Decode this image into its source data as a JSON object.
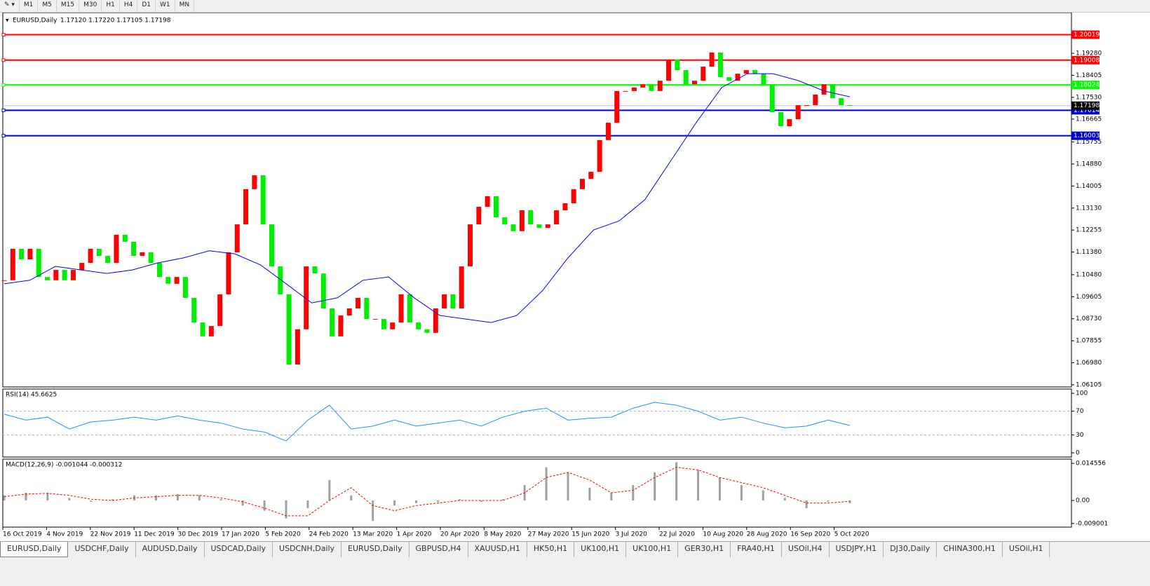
{
  "toolbar": {
    "timeframes": [
      "M1",
      "M5",
      "M15",
      "M30",
      "H1",
      "H4",
      "D1",
      "W1",
      "MN"
    ]
  },
  "main": {
    "title": "EURUSD,Daily",
    "ohlc": "1.17120 1.17220 1.17105 1.17198",
    "up_color": "#ff0000",
    "down_color": "#00ee00",
    "ylim": [
      1.0602,
      1.20896
    ],
    "yticks": [
      {
        "value": 1.1928,
        "label": "1.19280"
      },
      {
        "value": 1.18405,
        "label": "1.18405"
      },
      {
        "value": 1.1753,
        "label": "1.17530"
      },
      {
        "value": 1.16665,
        "label": "1.16665"
      },
      {
        "value": 1.15755,
        "label": "1.15755"
      },
      {
        "value": 1.1488,
        "label": "1.14880"
      },
      {
        "value": 1.14005,
        "label": "1.14005"
      },
      {
        "value": 1.1313,
        "label": "1.13130"
      },
      {
        "value": 1.12255,
        "label": "1.12255"
      },
      {
        "value": 1.1138,
        "label": "1.11380"
      },
      {
        "value": 1.1048,
        "label": "1.10480"
      },
      {
        "value": 1.09605,
        "label": "1.09605"
      },
      {
        "value": 1.0873,
        "label": "1.08730"
      },
      {
        "value": 1.07855,
        "label": "1.07855"
      },
      {
        "value": 1.0698,
        "label": "1.06980"
      },
      {
        "value": 1.06105,
        "label": "1.06105"
      }
    ],
    "hlines": [
      {
        "value": 1.20019,
        "color": "#ff0000"
      },
      {
        "value": 1.19008,
        "color": "#ff0000"
      },
      {
        "value": 1.18024,
        "color": "#00ff00"
      },
      {
        "value": 1.17014,
        "color": "#0000cc"
      },
      {
        "value": 1.16003,
        "color": "#0000cc"
      }
    ],
    "current": 1.17198,
    "closes": [
      1.1026,
      1.1151,
      1.1109,
      1.1151,
      1.1039,
      1.1026,
      1.1067,
      1.1026,
      1.1067,
      1.1095,
      1.1151,
      1.1123,
      1.1095,
      1.1207,
      1.1179,
      1.1123,
      1.1137,
      1.1095,
      1.1039,
      1.1012,
      1.1039,
      1.0956,
      1.0858,
      1.0803,
      1.0844,
      1.097,
      1.1137,
      1.1248,
      1.1388,
      1.1443,
      1.1248,
      1.1081,
      1.097,
      1.0691,
      1.0831,
      1.1081,
      1.1053,
      1.0914,
      1.0803,
      1.0886,
      1.0914,
      1.0956,
      1.0872,
      1.0872,
      1.0831,
      1.0858,
      1.097,
      1.0858,
      1.0831,
      1.0817,
      1.0914,
      1.097,
      1.0914,
      1.1081,
      1.1248,
      1.1318,
      1.136,
      1.1276,
      1.1248,
      1.1221,
      1.1304,
      1.1248,
      1.1234,
      1.1248,
      1.1304,
      1.1332,
      1.1388,
      1.1429,
      1.1457,
      1.1583,
      1.1652,
      1.1778,
      1.1778,
      1.1792,
      1.1805,
      1.1778,
      1.1819,
      1.1903,
      1.1861,
      1.1805,
      1.1819,
      1.1875,
      1.1931,
      1.1833,
      1.1819,
      1.1847,
      1.1861,
      1.1847,
      1.1805,
      1.1694,
      1.1638,
      1.1666,
      1.1722,
      1.1722,
      1.1764,
      1.1805,
      1.175,
      1.1722,
      1.172
    ],
    "ma": {
      "color": "#0000ff",
      "values": [
        1.1012,
        1.1026,
        1.1081,
        1.1067,
        1.1053,
        1.1067,
        1.1095,
        1.1115,
        1.1143,
        1.1131,
        1.1087,
        1.1012,
        1.0936,
        1.0956,
        1.1026,
        1.1039,
        1.0956,
        1.0886,
        1.0872,
        1.0858,
        1.0886,
        1.0984,
        1.1115,
        1.1226,
        1.1262,
        1.1346,
        1.1499,
        1.1652,
        1.1792,
        1.1847,
        1.1847,
        1.1819,
        1.1778,
        1.1755
      ]
    }
  },
  "rsi": {
    "label": "RSI(14) 45.6625",
    "color": "#1e90ff",
    "ylim": [
      -7,
      106
    ],
    "yticks": [
      0,
      30,
      70,
      100
    ],
    "levels": [
      70,
      30
    ],
    "values": [
      65,
      55,
      60,
      40,
      52,
      55,
      60,
      55,
      62,
      55,
      50,
      40,
      35,
      20,
      55,
      80,
      40,
      45,
      55,
      45,
      50,
      55,
      45,
      60,
      70,
      75,
      55,
      58,
      60,
      75,
      85,
      80,
      70,
      55,
      60,
      50,
      42,
      45,
      55,
      46
    ]
  },
  "macd": {
    "label": "MACD(12,26,9) -0.001044 -0.000312",
    "hist_color": "#a0a0a0",
    "signal_color": "#ff0000",
    "ylim": [
      -0.010437,
      0.015929
    ],
    "yticks": [
      0.014556,
      {
        "value": 0,
        "label": "0.00"
      },
      -0.009001
    ],
    "hist": [
      0.002,
      0.003,
      0.003,
      0.001,
      -0.0005,
      0.0005,
      0.002,
      0.002,
      0.0025,
      0.002,
      0.0005,
      -0.002,
      -0.004,
      -0.007,
      -0.003,
      0.008,
      0.002,
      -0.008,
      -0.002,
      -0.001,
      -0.0005,
      0.0005,
      -0.0005,
      0.0005,
      0.006,
      0.013,
      0.011,
      0.005,
      0.003,
      0.006,
      0.011,
      0.015,
      0.012,
      0.009,
      0.006,
      0.004,
      0.001,
      -0.003,
      -0.0005,
      -0.001044
    ],
    "signal": [
      0.0015,
      0.0025,
      0.0028,
      0.002,
      0.0005,
      0,
      0.001,
      0.0015,
      0.002,
      0.002,
      0.001,
      -0.0005,
      -0.003,
      -0.006,
      -0.006,
      0,
      0.005,
      -0.002,
      -0.004,
      -0.002,
      -0.001,
      0,
      0,
      0,
      0.003,
      0.009,
      0.011,
      0.008,
      0.003,
      0.004,
      0.009,
      0.013,
      0.012,
      0.009,
      0.007,
      0.005,
      0.002,
      -0.001,
      -0.001,
      -0.000312
    ]
  },
  "dates": [
    "16 Oct 2019",
    "4 Nov 2019",
    "22 Nov 2019",
    "11 Dec 2019",
    "30 Dec 2019",
    "17 Jan 2020",
    "5 Feb 2020",
    "24 Feb 2020",
    "13 Mar 2020",
    "1 Apr 2020",
    "20 Apr 2020",
    "8 May 2020",
    "27 May 2020",
    "15 Jun 2020",
    "3 Jul 2020",
    "22 Jul 2020",
    "10 Aug 2020",
    "28 Aug 2020",
    "16 Sep 2020",
    "5 Oct 2020"
  ],
  "tabs": [
    "EURUSD,Daily",
    "USDCHF,Daily",
    "AUDUSD,Daily",
    "USDCAD,Daily",
    "USDCNH,Daily",
    "EURUSD,Daily",
    "GBPUSD,H4",
    "XAUUSD,H1",
    "HK50,H1",
    "UK100,H1",
    "UK100,H1",
    "GER30,H1",
    "FRA40,H1",
    "USOil,H4",
    "USDJPY,H1",
    "DJ30,Daily",
    "CHINA300,H1",
    "USOil,H1"
  ]
}
